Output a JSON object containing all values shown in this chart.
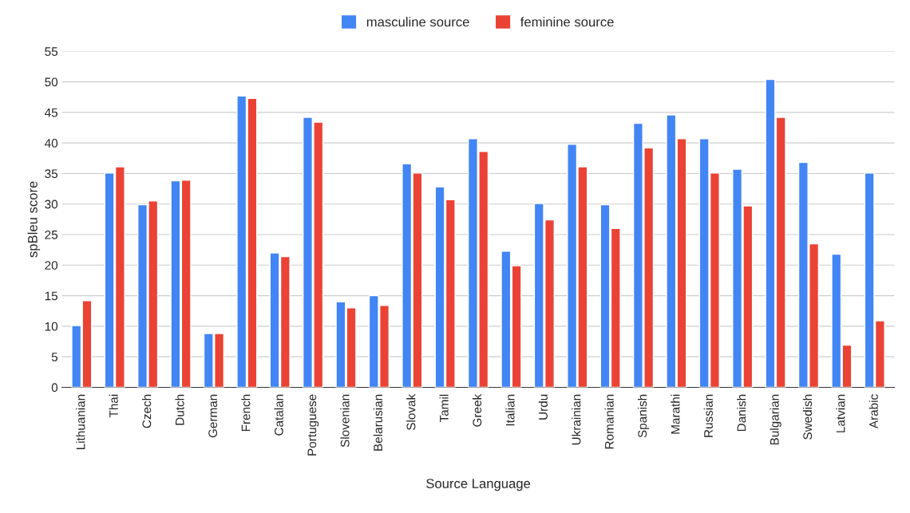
{
  "chart_data": {
    "type": "bar",
    "xlabel": "Source Language",
    "ylabel": "spBleu score",
    "categories": [
      "Lithuanian",
      "Thai",
      "Czech",
      "Dutch",
      "German",
      "French",
      "Catalan",
      "Portuguese",
      "Slovenian",
      "Belarusian",
      "Slovak",
      "Tamil",
      "Greek",
      "Italian",
      "Urdu",
      "Ukrainian",
      "Romanian",
      "Spanish",
      "Marathi",
      "Russian",
      "Danish",
      "Bulgarian",
      "Swedish",
      "Latvian",
      "Arabic"
    ],
    "series": [
      {
        "name": "masculine source",
        "color": "#4285f4",
        "values": [
          10.1,
          35.1,
          29.9,
          33.8,
          8.8,
          47.7,
          22.0,
          44.2,
          14.0,
          15.0,
          36.6,
          32.8,
          40.7,
          22.3,
          30.1,
          39.8,
          29.9,
          43.2,
          44.6,
          40.7,
          35.7,
          50.4,
          36.8,
          21.8,
          35.1
        ]
      },
      {
        "name": "feminine source",
        "color": "#ea4335",
        "values": [
          14.2,
          36.1,
          30.5,
          33.9,
          8.8,
          47.3,
          21.4,
          43.4,
          13.0,
          13.4,
          35.1,
          30.7,
          38.6,
          19.9,
          27.4,
          36.1,
          26.0,
          39.2,
          40.7,
          35.1,
          29.7,
          44.2,
          23.5,
          6.9,
          10.9
        ]
      }
    ],
    "ylim": [
      0,
      55
    ],
    "yticks": [
      0,
      5,
      10,
      15,
      20,
      25,
      30,
      35,
      40,
      45,
      50,
      55
    ],
    "grid": "y",
    "legend": "top"
  }
}
